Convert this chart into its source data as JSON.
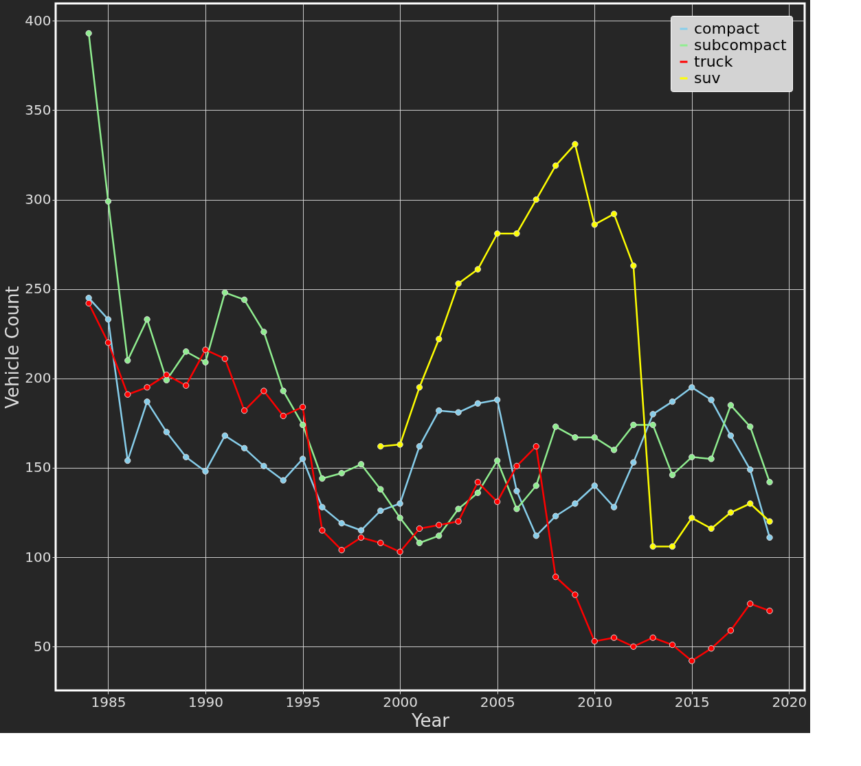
{
  "chart_data": {
    "type": "line",
    "xlabel": "Year",
    "ylabel": "Vehicle Count",
    "x": [
      1984,
      1985,
      1986,
      1987,
      1988,
      1989,
      1990,
      1991,
      1992,
      1993,
      1994,
      1995,
      1996,
      1997,
      1998,
      1999,
      2000,
      2001,
      2002,
      2003,
      2004,
      2005,
      2006,
      2007,
      2008,
      2009,
      2010,
      2011,
      2012,
      2013,
      2014,
      2015,
      2016,
      2017,
      2018,
      2019
    ],
    "series": [
      {
        "name": "compact",
        "color": "#87ceeb",
        "values": [
          245,
          233,
          154,
          187,
          170,
          156,
          148,
          168,
          161,
          151,
          143,
          155,
          128,
          119,
          115,
          126,
          130,
          162,
          182,
          181,
          186,
          188,
          137,
          112,
          123,
          130,
          140,
          128,
          153,
          180,
          187,
          195,
          188,
          168,
          149,
          111
        ]
      },
      {
        "name": "subcompact",
        "color": "#90ee90",
        "values": [
          393,
          299,
          210,
          233,
          199,
          215,
          209,
          248,
          244,
          226,
          193,
          174,
          144,
          147,
          152,
          138,
          122,
          108,
          112,
          127,
          136,
          154,
          127,
          140,
          173,
          167,
          167,
          160,
          174,
          174,
          146,
          156,
          155,
          185,
          173,
          142
        ]
      },
      {
        "name": "truck",
        "color": "#ff0000",
        "values": [
          242,
          220,
          191,
          195,
          202,
          196,
          216,
          211,
          182,
          193,
          179,
          184,
          115,
          104,
          111,
          108,
          103,
          116,
          118,
          120,
          142,
          131,
          151,
          162,
          89,
          79,
          53,
          55,
          50,
          55,
          51,
          42,
          49,
          59,
          74,
          70
        ]
      },
      {
        "name": "suv",
        "color": "#ffff00",
        "x": [
          1999,
          2000,
          2001,
          2002,
          2003,
          2004,
          2005,
          2006,
          2007,
          2008,
          2009,
          2010,
          2011,
          2012,
          2013,
          2014,
          2015,
          2016,
          2017,
          2018,
          2019
        ],
        "values": [
          162,
          163,
          195,
          222,
          253,
          261,
          281,
          281,
          300,
          319,
          331,
          286,
          292,
          263,
          106,
          106,
          122,
          116,
          125,
          130,
          120
        ]
      }
    ],
    "xlim": [
      1982.3,
      2020.8
    ],
    "xticks": [
      1985,
      1990,
      1995,
      2000,
      2005,
      2010,
      2015,
      2020
    ],
    "ylim": [
      25.5,
      409.7
    ],
    "yticks": [
      50,
      100,
      150,
      200,
      250,
      300,
      350,
      400
    ],
    "grid": true,
    "legend": "top right",
    "marker": "circle",
    "line_style": "solid"
  }
}
